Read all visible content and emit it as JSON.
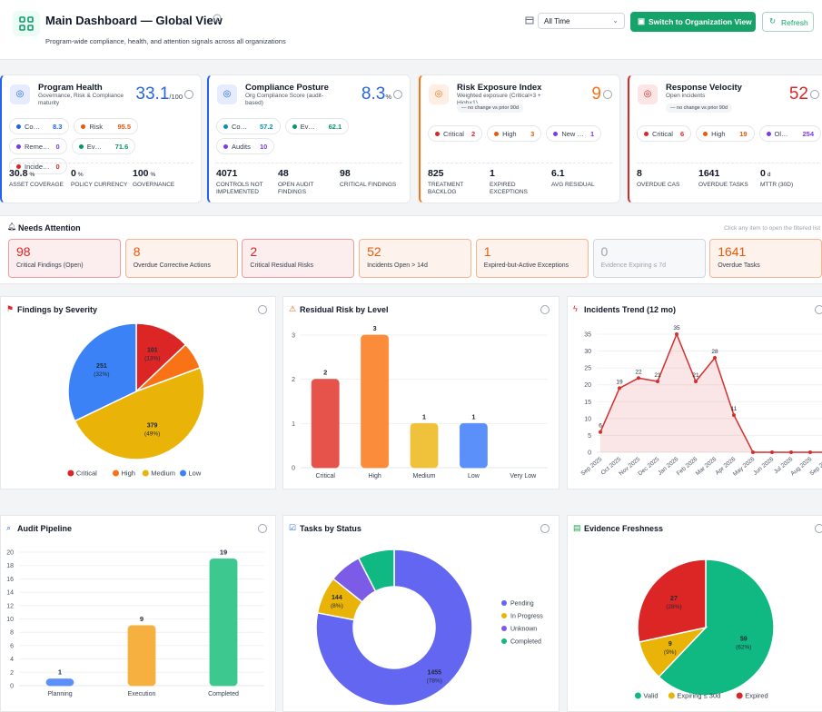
{
  "header": {
    "title": "Main Dashboard — Global View",
    "subtitle": "Program-wide compliance, health, and attention signals across all organizations",
    "period": "All Time",
    "primary_button": "Switch to Organization View",
    "refresh_button": "Refresh"
  },
  "kpi_cards": [
    {
      "title": "Program Health",
      "subtitle": "Governance, Risk & Compliance maturity",
      "value": 33.1,
      "unit": "/100",
      "color": "#2563eb",
      "pills": [
        {
          "label": "Co…",
          "value": 8.3,
          "color": "#2563eb"
        },
        {
          "label": "Risk",
          "value": 95.5,
          "color": "#ea580c"
        },
        {
          "label": "Reme…",
          "value": 0,
          "color": "#7c3aed"
        },
        {
          "label": "Ev…",
          "value": 71.6,
          "color": "#059669"
        },
        {
          "label": "Incide…",
          "value": 0,
          "color": "#dc2626"
        }
      ],
      "stats": [
        {
          "value": 30.8,
          "unit": "%",
          "label": "ASSET COVERAGE"
        },
        {
          "value": 0,
          "unit": "%",
          "label": "POLICY CURRENCY"
        },
        {
          "value": 100,
          "unit": "%",
          "label": "GOVERNANCE"
        }
      ]
    },
    {
      "title": "Compliance Posture",
      "subtitle": "Org Compliance Score (audit-based)",
      "value": 8.3,
      "unit": "%",
      "color": "#2563eb",
      "pills": [
        {
          "label": "Co…",
          "value": 57.2,
          "color": "#0891b2"
        },
        {
          "label": "Ev…",
          "value": 62.1,
          "color": "#059669"
        },
        {
          "label": "Audits",
          "value": 10,
          "color": "#7c3aed"
        }
      ],
      "stats": [
        {
          "value": 4071,
          "label": "CONTROLS NOT IMPLEMENTED"
        },
        {
          "value": 48,
          "label": "OPEN AUDIT FINDINGS"
        },
        {
          "value": 98,
          "label": "CRITICAL FINDINGS"
        }
      ]
    },
    {
      "title": "Risk Exposure Index",
      "subtitle": "Weighted exposure (Critical×3 + High×1)",
      "value": 9,
      "color": "#f97316",
      "badge": "— no change vs prior 90d",
      "pills": [
        {
          "label": "Critical",
          "value": 2,
          "color": "#dc2626"
        },
        {
          "label": "High",
          "value": 3,
          "color": "#ea580c"
        },
        {
          "label": "New …",
          "value": 1,
          "color": "#7c3aed"
        }
      ],
      "stats": [
        {
          "value": 825,
          "label": "TREATMENT BACKLOG"
        },
        {
          "value": 1,
          "label": "EXPIRED EXCEPTIONS"
        },
        {
          "value": 6.1,
          "label": "AVG RESIDUAL"
        }
      ]
    },
    {
      "title": "Response Velocity",
      "subtitle": "Open incidents",
      "value": 52,
      "color": "#dc2626",
      "badge": "— no change vs prior 90d",
      "pills": [
        {
          "label": "Critical",
          "value": 6,
          "color": "#dc2626"
        },
        {
          "label": "High",
          "value": 19,
          "color": "#ea580c"
        },
        {
          "label": "Ol…",
          "value": 254,
          "color": "#7c3aed"
        }
      ],
      "stats": [
        {
          "value": 8,
          "label": "OVERDUE CAS"
        },
        {
          "value": 1641,
          "label": "OVERDUE TASKS"
        },
        {
          "value": 0,
          "unit": "d",
          "label": "MTTR (30D)"
        }
      ]
    }
  ],
  "needs_attention": {
    "title": "Needs Attention",
    "hint": "Click any item to open the filtered list",
    "items": [
      {
        "value": 98,
        "label": "Critical Findings (Open)",
        "color": "#dc2626"
      },
      {
        "value": 8,
        "label": "Overdue Corrective Actions",
        "color": "#ea580c"
      },
      {
        "value": 2,
        "label": "Critical Residual Risks",
        "color": "#dc2626"
      },
      {
        "value": 52,
        "label": "Incidents Open > 14d",
        "color": "#ea580c"
      },
      {
        "value": 1,
        "label": "Expired-but-Active Exceptions",
        "color": "#ea580c"
      },
      {
        "value": 0,
        "label": "Evidence Expiring ≤ 7d",
        "color": "#9ca3af"
      },
      {
        "value": 1641,
        "label": "Overdue Tasks",
        "color": "#ea580c"
      }
    ]
  },
  "charts": [
    {
      "type": "pie",
      "title": "Findings by Severity",
      "categories": [
        "Critical",
        "High",
        "Medium",
        "Low"
      ],
      "values": [
        101,
        50,
        379,
        251
      ],
      "percent_labels": [
        "(13%)",
        null,
        "(49%)",
        "(32%)"
      ],
      "colors": [
        "#dc2626",
        "#f97316",
        "#eab308",
        "#3b82f6"
      ]
    },
    {
      "type": "bar",
      "title": "Residual Risk by Level",
      "categories": [
        "Critical",
        "High",
        "Medium",
        "Low",
        "Very Low"
      ],
      "values": [
        2,
        3,
        1,
        1,
        null
      ],
      "colors": [
        "#e5534b",
        "#fb8c3c",
        "#f0c23b",
        "#5b8ff9",
        "#9ca3af"
      ],
      "ylim": [
        0,
        3
      ],
      "yticks": [
        0,
        1,
        2,
        3
      ]
    },
    {
      "type": "line",
      "title": "Incidents Trend (12 mo)",
      "categories": [
        "Sep 2025",
        "Oct 2025",
        "Nov 2025",
        "Dec 2025",
        "Jan 2026",
        "Feb 2026",
        "Mar 2026",
        "Apr 2026",
        "May 2026",
        "Jun 2026",
        "Jul 2026",
        "Aug 2026",
        "Sep 2026"
      ],
      "values": [
        6,
        19,
        22,
        21,
        35,
        21,
        28,
        11,
        0,
        0,
        0,
        0,
        0
      ],
      "color": "#d32f2f",
      "ylim": [
        0,
        35
      ],
      "yticks": [
        0,
        5,
        10,
        15,
        20,
        25,
        30,
        35
      ]
    },
    {
      "type": "bar",
      "title": "Audit Pipeline",
      "categories": [
        "Planning",
        "Execution",
        "Completed"
      ],
      "values": [
        1,
        9,
        19
      ],
      "colors": [
        "#5b8ff9",
        "#f5b040",
        "#3cc88f"
      ],
      "ylim": [
        0,
        20
      ],
      "yticks": [
        0,
        2,
        4,
        6,
        8,
        10,
        12,
        14,
        16,
        18,
        20
      ]
    },
    {
      "type": "donut",
      "title": "Tasks by Status",
      "categories": [
        "Pending",
        "In Progress",
        "Unknown",
        "Completed"
      ],
      "values": [
        1455,
        144,
        125,
        141
      ],
      "percent_labels": [
        "(78%)",
        "(8%)",
        null,
        null
      ],
      "colors": [
        "#6366f1",
        "#eab308",
        "#7c5ce6",
        "#10b981"
      ]
    },
    {
      "type": "pie",
      "title": "Evidence Freshness",
      "categories": [
        "Valid",
        "Expiring ≤ 30d",
        "Expired"
      ],
      "values": [
        59,
        9,
        27
      ],
      "percent_labels": [
        "(62%)",
        "(9%)",
        "(28%)"
      ],
      "colors": [
        "#10b981",
        "#eab308",
        "#dc2626"
      ]
    }
  ]
}
